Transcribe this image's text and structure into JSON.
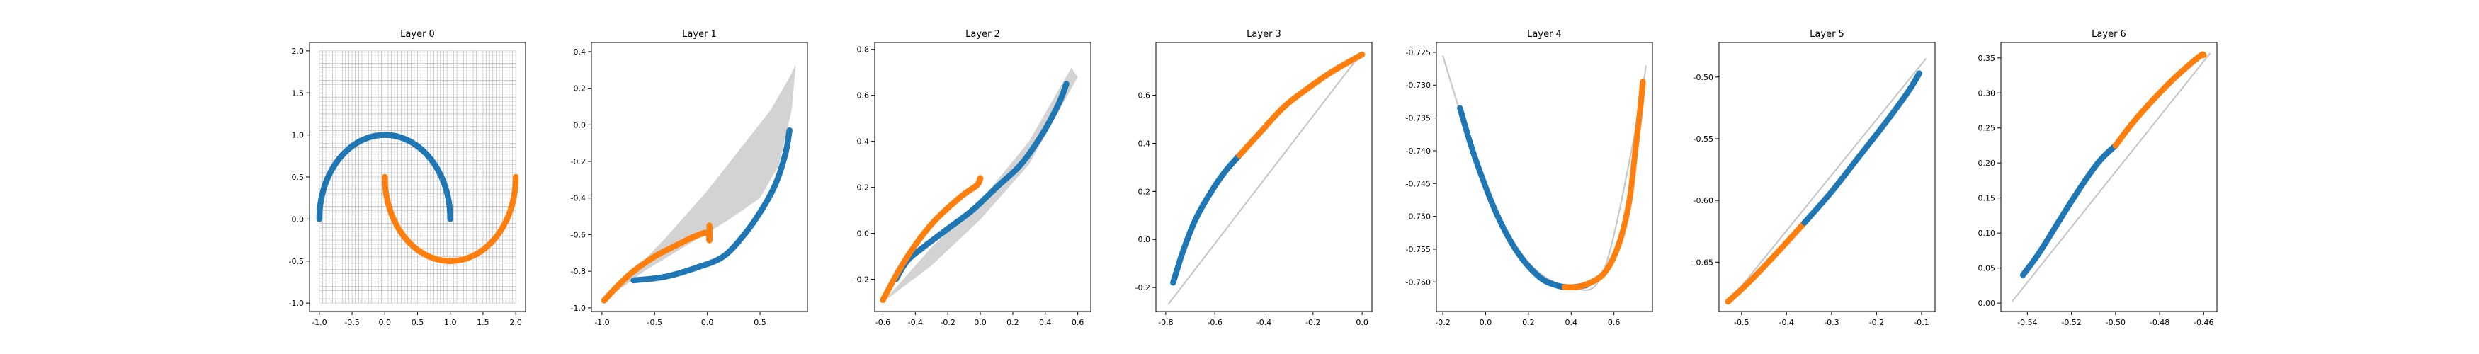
{
  "figure": {
    "background": "#ffffff",
    "colors": {
      "class0": "#1f77b4",
      "class1": "#ff7f0e",
      "envelope": "#d3d3d3",
      "grid": "#b0b0b0"
    }
  },
  "chart_data": [
    {
      "type": "scatter",
      "title": "Layer 0",
      "xlabel": "",
      "ylabel": "",
      "xlim": [
        -1.15,
        2.15
      ],
      "ylim": [
        -1.1,
        2.1
      ],
      "xticks": [
        "-1.0",
        "-0.5",
        "0.0",
        "0.5",
        "1.0",
        "1.5",
        "2.0"
      ],
      "yticks": [
        "-1.0",
        "-0.5",
        "0.0",
        "0.5",
        "1.0",
        "1.5",
        "2.0"
      ],
      "grid_mesh": {
        "shown": true,
        "x_range": [
          -1.0,
          2.0
        ],
        "y_range": [
          -1.0,
          2.0
        ],
        "lines": 60
      },
      "series": [
        {
          "class": 0,
          "shape": "arc",
          "center": [
            0.0,
            0.0
          ],
          "radius": 1.0,
          "angle_deg": [
            0,
            180
          ]
        },
        {
          "class": 1,
          "shape": "arc",
          "center": [
            1.0,
            0.5
          ],
          "radius": 1.0,
          "angle_deg": [
            180,
            360
          ]
        }
      ]
    },
    {
      "type": "scatter",
      "title": "Layer 1",
      "xlabel": "",
      "ylabel": "",
      "xlim": [
        -1.1,
        0.95
      ],
      "ylim": [
        -1.02,
        0.45
      ],
      "xticks": [
        "-1.0",
        "-0.5",
        "0.0",
        "0.5"
      ],
      "yticks": [
        "-1.0",
        "-0.8",
        "-0.6",
        "-0.4",
        "-0.2",
        "0.0",
        "0.2",
        "0.4"
      ],
      "envelope": [
        [
          -1.0,
          -0.97
        ],
        [
          -0.6,
          -0.8
        ],
        [
          -0.2,
          -0.66
        ],
        [
          0.2,
          -0.52
        ],
        [
          0.5,
          -0.4
        ],
        [
          0.68,
          -0.22
        ],
        [
          0.76,
          -0.02
        ],
        [
          0.8,
          0.08
        ],
        [
          0.84,
          0.33
        ],
        [
          0.78,
          0.26
        ],
        [
          0.6,
          0.08
        ],
        [
          0.3,
          -0.14
        ],
        [
          0.0,
          -0.36
        ],
        [
          -0.4,
          -0.62
        ],
        [
          -0.8,
          -0.86
        ],
        [
          -1.0,
          -0.97
        ]
      ],
      "series": [
        {
          "class": 0,
          "points": [
            [
              -0.7,
              -0.85
            ],
            [
              -0.4,
              -0.83
            ],
            [
              -0.1,
              -0.78
            ],
            [
              0.15,
              -0.72
            ],
            [
              0.35,
              -0.6
            ],
            [
              0.52,
              -0.46
            ],
            [
              0.65,
              -0.32
            ],
            [
              0.74,
              -0.16
            ],
            [
              0.78,
              -0.03
            ]
          ]
        },
        {
          "class": 1,
          "points": [
            [
              -0.98,
              -0.96
            ],
            [
              -0.85,
              -0.88
            ],
            [
              -0.7,
              -0.8
            ],
            [
              -0.5,
              -0.72
            ],
            [
              -0.3,
              -0.66
            ],
            [
              -0.12,
              -0.61
            ],
            [
              0.0,
              -0.59
            ],
            [
              0.02,
              -0.63
            ],
            [
              0.02,
              -0.55
            ]
          ]
        }
      ]
    },
    {
      "type": "scatter",
      "title": "Layer 2",
      "xlabel": "",
      "ylabel": "",
      "xlim": [
        -0.65,
        0.68
      ],
      "ylim": [
        -0.34,
        0.83
      ],
      "xticks": [
        "-0.6",
        "-0.4",
        "-0.2",
        "0.0",
        "0.2",
        "0.4",
        "0.6"
      ],
      "yticks": [
        "-0.2",
        "0.0",
        "0.2",
        "0.4",
        "0.6",
        "0.8"
      ],
      "envelope": [
        [
          -0.6,
          -0.3
        ],
        [
          -0.3,
          -0.06
        ],
        [
          0.0,
          0.14
        ],
        [
          0.3,
          0.4
        ],
        [
          0.56,
          0.72
        ],
        [
          0.6,
          0.68
        ],
        [
          0.3,
          0.3
        ],
        [
          0.0,
          0.06
        ],
        [
          -0.3,
          -0.14
        ],
        [
          -0.6,
          -0.3
        ]
      ],
      "series": [
        {
          "class": 0,
          "points": [
            [
              -0.52,
              -0.2
            ],
            [
              -0.45,
              -0.12
            ],
            [
              -0.35,
              -0.06
            ],
            [
              -0.2,
              0.02
            ],
            [
              -0.05,
              0.1
            ],
            [
              0.1,
              0.2
            ],
            [
              0.25,
              0.3
            ],
            [
              0.38,
              0.43
            ],
            [
              0.48,
              0.56
            ],
            [
              0.53,
              0.65
            ]
          ]
        },
        {
          "class": 1,
          "points": [
            [
              -0.6,
              -0.29
            ],
            [
              -0.5,
              -0.16
            ],
            [
              -0.4,
              -0.05
            ],
            [
              -0.3,
              0.04
            ],
            [
              -0.2,
              0.11
            ],
            [
              -0.1,
              0.17
            ],
            [
              -0.02,
              0.21
            ],
            [
              0.0,
              0.24
            ]
          ]
        }
      ]
    },
    {
      "type": "scatter",
      "title": "Layer 3",
      "xlabel": "",
      "ylabel": "",
      "xlim": [
        -0.84,
        0.04
      ],
      "ylim": [
        -0.3,
        0.82
      ],
      "xticks": [
        "-0.8",
        "-0.6",
        "-0.4",
        "-0.2",
        "0.0"
      ],
      "yticks": [
        "-0.2",
        "0.0",
        "0.2",
        "0.4",
        "0.6"
      ],
      "envelope_line": [
        [
          -0.79,
          -0.27
        ],
        [
          0.0,
          0.78
        ]
      ],
      "series": [
        {
          "class": 0,
          "points": [
            [
              -0.77,
              -0.18
            ],
            [
              -0.73,
              -0.05
            ],
            [
              -0.68,
              0.08
            ],
            [
              -0.62,
              0.19
            ],
            [
              -0.56,
              0.28
            ],
            [
              -0.5,
              0.35
            ]
          ]
        },
        {
          "class": 1,
          "points": [
            [
              -0.5,
              0.35
            ],
            [
              -0.42,
              0.44
            ],
            [
              -0.32,
              0.55
            ],
            [
              -0.22,
              0.63
            ],
            [
              -0.12,
              0.7
            ],
            [
              0.0,
              0.77
            ]
          ]
        }
      ]
    },
    {
      "type": "scatter",
      "title": "Layer 4",
      "xlabel": "",
      "ylabel": "",
      "xlim": [
        -0.23,
        0.78
      ],
      "ylim": [
        -0.7645,
        -0.7235
      ],
      "xticks": [
        "-0.2",
        "0.0",
        "0.2",
        "0.4",
        "0.6"
      ],
      "yticks": [
        "-0.725",
        "-0.730",
        "-0.735",
        "-0.740",
        "-0.745",
        "-0.750",
        "-0.755",
        "-0.760"
      ],
      "envelope_line": [
        [
          -0.2,
          -0.7255
        ],
        [
          -0.12,
          -0.734
        ],
        [
          0.0,
          -0.746
        ],
        [
          0.2,
          -0.757
        ],
        [
          0.4,
          -0.7608
        ],
        [
          0.55,
          -0.7585
        ],
        [
          0.7,
          -0.737
        ],
        [
          0.75,
          -0.727
        ]
      ],
      "series": [
        {
          "class": 0,
          "points": [
            [
              -0.12,
              -0.7335
            ],
            [
              -0.05,
              -0.741
            ],
            [
              0.05,
              -0.7495
            ],
            [
              0.15,
              -0.7555
            ],
            [
              0.25,
              -0.7592
            ],
            [
              0.33,
              -0.7605
            ],
            [
              0.4,
              -0.7608
            ],
            [
              0.47,
              -0.7605
            ]
          ]
        },
        {
          "class": 1,
          "points": [
            [
              0.37,
              -0.7608
            ],
            [
              0.45,
              -0.7606
            ],
            [
              0.55,
              -0.7588
            ],
            [
              0.62,
              -0.7545
            ],
            [
              0.67,
              -0.748
            ],
            [
              0.7,
              -0.74
            ],
            [
              0.725,
              -0.733
            ],
            [
              0.735,
              -0.7295
            ]
          ]
        }
      ]
    },
    {
      "type": "scatter",
      "title": "Layer 5",
      "xlabel": "",
      "ylabel": "",
      "xlim": [
        -0.55,
        -0.07
      ],
      "ylim": [
        -0.69,
        -0.472
      ],
      "xticks": [
        "-0.5",
        "-0.4",
        "-0.3",
        "-0.2",
        "-0.1"
      ],
      "yticks": [
        "-0.50",
        "-0.55",
        "-0.60",
        "-0.65"
      ],
      "envelope_line": [
        [
          -0.53,
          -0.683
        ],
        [
          -0.09,
          -0.485
        ]
      ],
      "series": [
        {
          "class": 1,
          "points": [
            [
              -0.53,
              -0.682
            ],
            [
              -0.48,
              -0.665
            ],
            [
              -0.42,
              -0.642
            ],
            [
              -0.36,
              -0.618
            ]
          ]
        },
        {
          "class": 0,
          "points": [
            [
              -0.36,
              -0.618
            ],
            [
              -0.3,
              -0.593
            ],
            [
              -0.24,
              -0.565
            ],
            [
              -0.18,
              -0.537
            ],
            [
              -0.13,
              -0.512
            ],
            [
              -0.105,
              -0.497
            ]
          ]
        }
      ]
    },
    {
      "type": "scatter",
      "title": "Layer 6",
      "xlabel": "",
      "ylabel": "",
      "xlim": [
        -0.552,
        -0.454
      ],
      "ylim": [
        -0.012,
        0.372
      ],
      "xticks": [
        "-0.54",
        "-0.52",
        "-0.50",
        "-0.48",
        "-0.46"
      ],
      "yticks": [
        "0.00",
        "0.05",
        "0.10",
        "0.15",
        "0.20",
        "0.25",
        "0.30",
        "0.35"
      ],
      "envelope_line": [
        [
          -0.547,
          0.002
        ],
        [
          -0.457,
          0.357
        ]
      ],
      "series": [
        {
          "class": 0,
          "points": [
            [
              -0.542,
              0.04
            ],
            [
              -0.535,
              0.07
            ],
            [
              -0.527,
              0.11
            ],
            [
              -0.518,
              0.155
            ],
            [
              -0.508,
              0.2
            ],
            [
              -0.5,
              0.225
            ]
          ]
        },
        {
          "class": 1,
          "points": [
            [
              -0.5,
              0.225
            ],
            [
              -0.492,
              0.258
            ],
            [
              -0.483,
              0.29
            ],
            [
              -0.473,
              0.322
            ],
            [
              -0.462,
              0.352
            ],
            [
              -0.46,
              0.354
            ]
          ]
        }
      ]
    }
  ]
}
